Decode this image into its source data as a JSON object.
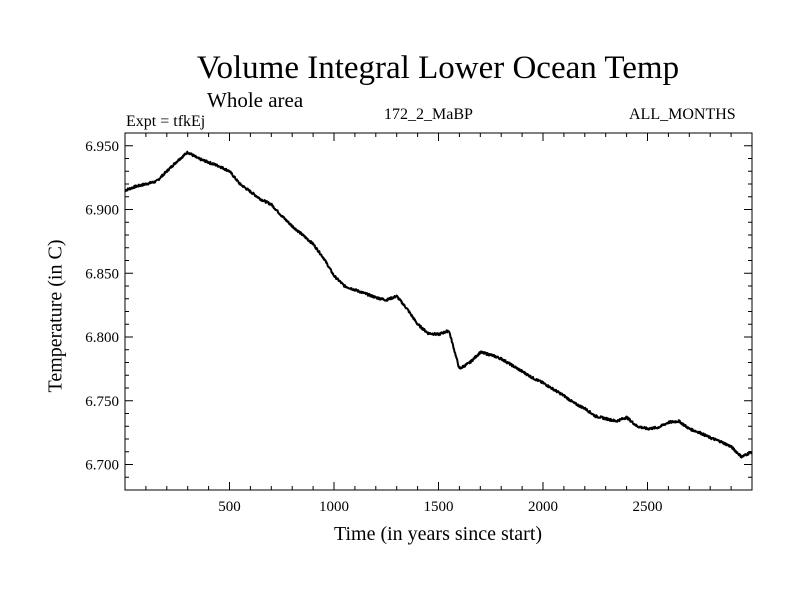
{
  "header": {
    "title": "Volume Integral Lower Ocean Temp",
    "subtitle": "Whole area",
    "expt_label": "Expt = tfkEj",
    "expt_name": "172_2_MaBP",
    "months": "ALL_MONTHS"
  },
  "chart_data": {
    "type": "line",
    "title": "Volume Integral Lower Ocean Temp",
    "xlabel": "Time (in years since start)",
    "ylabel": "Temperature (in C)",
    "xlim": [
      0,
      3000
    ],
    "ylim": [
      6.68,
      6.96
    ],
    "x_ticks": [
      500,
      1000,
      1500,
      2000,
      2500
    ],
    "x_tick_labels": [
      "500",
      "1000",
      "1500",
      "2000",
      "2500"
    ],
    "y_ticks": [
      6.7,
      6.75,
      6.8,
      6.85,
      6.9,
      6.95
    ],
    "y_tick_labels": [
      "6.700",
      "6.750",
      "6.800",
      "6.850",
      "6.900",
      "6.950"
    ],
    "grid": false,
    "legend": "none",
    "line_color": "#000000",
    "series": [
      {
        "x": [
          0,
          50,
          100,
          150,
          200,
          250,
          300,
          350,
          400,
          450,
          500,
          550,
          600,
          650,
          700,
          750,
          800,
          850,
          900,
          950,
          1000,
          1050,
          1100,
          1150,
          1200,
          1250,
          1300,
          1350,
          1400,
          1450,
          1500,
          1550,
          1600,
          1650,
          1700,
          1750,
          1800,
          1850,
          1900,
          1950,
          2000,
          2050,
          2100,
          2150,
          2200,
          2250,
          2300,
          2350,
          2400,
          2450,
          2500,
          2550,
          2600,
          2650,
          2700,
          2750,
          2800,
          2850,
          2900,
          2950,
          3000
        ],
        "y": [
          6.915,
          6.918,
          6.92,
          6.922,
          6.93,
          6.938,
          6.945,
          6.94,
          6.937,
          6.934,
          6.93,
          6.92,
          6.914,
          6.908,
          6.904,
          6.895,
          6.887,
          6.88,
          6.873,
          6.862,
          6.848,
          6.84,
          6.837,
          6.834,
          6.831,
          6.829,
          6.832,
          6.822,
          6.81,
          6.803,
          6.802,
          6.805,
          6.775,
          6.78,
          6.788,
          6.786,
          6.783,
          6.778,
          6.773,
          6.768,
          6.764,
          6.759,
          6.754,
          6.748,
          6.744,
          6.738,
          6.736,
          6.734,
          6.737,
          6.73,
          6.728,
          6.729,
          6.733,
          6.734,
          6.728,
          6.725,
          6.721,
          6.718,
          6.714,
          6.706,
          6.71
        ]
      }
    ]
  }
}
